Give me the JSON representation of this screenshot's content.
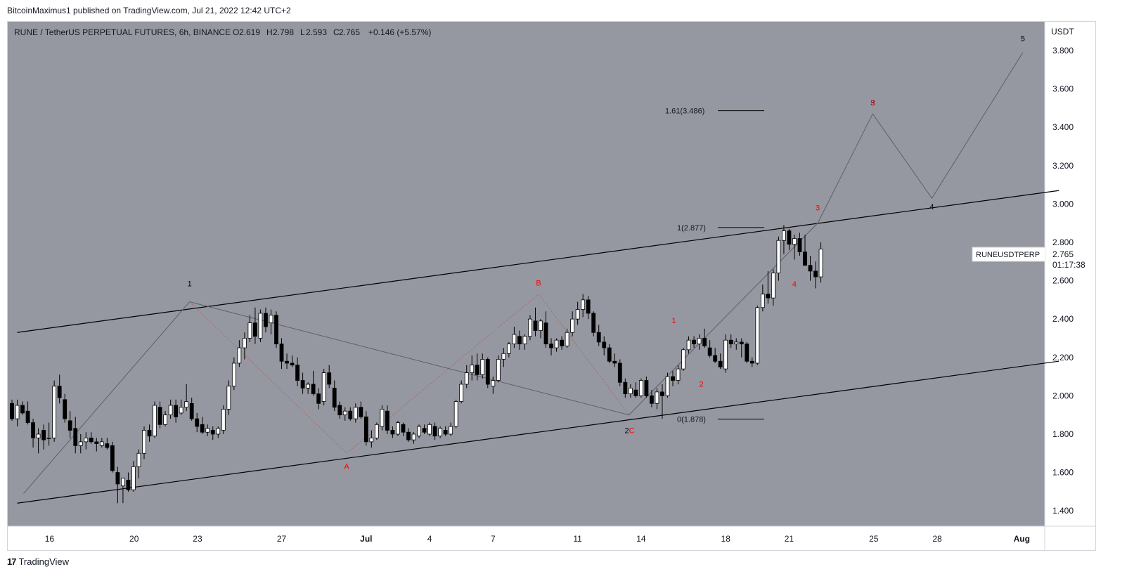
{
  "header": {
    "publisher_line": "BitcoinMaximus1 published on TradingView.com, Jul 21, 2022 12:42 UTC+2"
  },
  "legend": {
    "symbol_text": "RUNE / TetherUS PERPETUAL FUTURES, 6h, BINANCE",
    "open_label": "O",
    "open_value": "2.619",
    "high_label": "H",
    "high_value": "2.798",
    "low_label": "L",
    "low_value": "2.593",
    "close_label": "C",
    "close_value": "2.765",
    "change_text": "+0.146 (+5.57%)"
  },
  "price_axis": {
    "currency": "USDT",
    "ticks": [
      "1.400",
      "1.600",
      "1.800",
      "2.000",
      "2.200",
      "2.400",
      "2.600",
      "2.800",
      "3.000",
      "3.200",
      "3.400",
      "3.600",
      "3.800"
    ]
  },
  "time_axis": {
    "ticks": [
      "16",
      "20",
      "23",
      "27",
      "Jul",
      "4",
      "7",
      "11",
      "14",
      "18",
      "21",
      "25",
      "28",
      "Aug"
    ]
  },
  "price_tag": {
    "symbol": "RUNEUSDTPERP",
    "price": "2.765",
    "countdown": "01:17:38"
  },
  "fib_labels": {
    "top": "1.61(3.486)",
    "mid": "1(2.877)",
    "bottom": "0(1.878)"
  },
  "footer": {
    "logo_mark": "17",
    "brand": "TradingView"
  },
  "colors": {
    "plot_bg": "#9598a1",
    "candle_up": "#ffffff",
    "candle_down": "#000000",
    "wave_red": "#ff0000",
    "wave_black": "#000000"
  },
  "chart_data": {
    "type": "candlestick",
    "title": "RUNE / TetherUS PERPETUAL FUTURES, 6h, BINANCE",
    "ylabel": "USDT",
    "ylim": [
      1.32,
      3.95
    ],
    "x_ticks": [
      "16",
      "20",
      "23",
      "27",
      "Jul",
      "4",
      "7",
      "11",
      "14",
      "18",
      "21",
      "25",
      "28",
      "Aug"
    ],
    "y_ticks": [
      1.4,
      1.6,
      1.8,
      2.0,
      2.2,
      2.4,
      2.6,
      2.8,
      3.0,
      3.2,
      3.4,
      3.6,
      3.8
    ],
    "candles": [
      [
        1.96,
        1.98,
        1.87,
        1.88
      ],
      [
        1.88,
        1.98,
        1.84,
        1.95
      ],
      [
        1.95,
        1.97,
        1.9,
        1.91
      ],
      [
        1.92,
        1.97,
        1.85,
        1.86
      ],
      [
        1.86,
        1.88,
        1.73,
        1.78
      ],
      [
        1.78,
        1.83,
        1.7,
        1.8
      ],
      [
        1.82,
        1.85,
        1.72,
        1.77
      ],
      [
        1.78,
        1.86,
        1.74,
        1.78
      ],
      [
        1.78,
        2.08,
        1.76,
        2.05
      ],
      [
        2.05,
        2.11,
        1.96,
        1.99
      ],
      [
        1.98,
        2.01,
        1.86,
        1.88
      ],
      [
        1.87,
        1.92,
        1.78,
        1.82
      ],
      [
        1.83,
        1.89,
        1.7,
        1.74
      ],
      [
        1.74,
        1.8,
        1.7,
        1.76
      ],
      [
        1.76,
        1.81,
        1.72,
        1.78
      ],
      [
        1.78,
        1.81,
        1.75,
        1.76
      ],
      [
        1.76,
        1.78,
        1.71,
        1.75
      ],
      [
        1.74,
        1.78,
        1.73,
        1.76
      ],
      [
        1.75,
        1.78,
        1.72,
        1.73
      ],
      [
        1.74,
        1.76,
        1.6,
        1.61
      ],
      [
        1.6,
        1.63,
        1.44,
        1.54
      ],
      [
        1.53,
        1.57,
        1.44,
        1.57
      ],
      [
        1.56,
        1.6,
        1.5,
        1.51
      ],
      [
        1.51,
        1.66,
        1.5,
        1.63
      ],
      [
        1.63,
        1.72,
        1.57,
        1.7
      ],
      [
        1.7,
        1.84,
        1.67,
        1.82
      ],
      [
        1.82,
        1.85,
        1.76,
        1.79
      ],
      [
        1.79,
        1.97,
        1.78,
        1.95
      ],
      [
        1.94,
        1.97,
        1.83,
        1.85
      ],
      [
        1.85,
        1.92,
        1.84,
        1.9
      ],
      [
        1.9,
        1.98,
        1.88,
        1.95
      ],
      [
        1.95,
        1.98,
        1.86,
        1.89
      ],
      [
        1.91,
        1.98,
        1.9,
        1.94
      ],
      [
        1.94,
        2.06,
        1.92,
        1.97
      ],
      [
        1.96,
        1.99,
        1.87,
        1.88
      ],
      [
        1.88,
        1.91,
        1.81,
        1.84
      ],
      [
        1.85,
        1.89,
        1.8,
        1.81
      ],
      [
        1.81,
        1.85,
        1.79,
        1.83
      ],
      [
        1.82,
        1.84,
        1.77,
        1.8
      ],
      [
        1.8,
        1.84,
        1.78,
        1.83
      ],
      [
        1.82,
        1.95,
        1.8,
        1.93
      ],
      [
        1.93,
        2.08,
        1.9,
        2.05
      ],
      [
        2.05,
        2.2,
        2.03,
        2.17
      ],
      [
        2.17,
        2.29,
        2.15,
        2.25
      ],
      [
        2.25,
        2.33,
        2.19,
        2.3
      ],
      [
        2.3,
        2.42,
        2.28,
        2.38
      ],
      [
        2.38,
        2.46,
        2.27,
        2.31
      ],
      [
        2.3,
        2.45,
        2.28,
        2.43
      ],
      [
        2.43,
        2.46,
        2.33,
        2.36
      ],
      [
        2.38,
        2.45,
        2.32,
        2.42
      ],
      [
        2.42,
        2.44,
        2.25,
        2.27
      ],
      [
        2.27,
        2.3,
        2.14,
        2.18
      ],
      [
        2.18,
        2.22,
        2.14,
        2.17
      ],
      [
        2.17,
        2.21,
        2.15,
        2.16
      ],
      [
        2.16,
        2.2,
        2.05,
        2.08
      ],
      [
        2.08,
        2.12,
        2.01,
        2.04
      ],
      [
        2.04,
        2.07,
        2.01,
        2.06
      ],
      [
        2.06,
        2.13,
        2.0,
        2.01
      ],
      [
        2.01,
        2.04,
        1.93,
        1.96
      ],
      [
        1.97,
        2.14,
        1.95,
        2.12
      ],
      [
        2.12,
        2.16,
        2.04,
        2.06
      ],
      [
        2.04,
        2.08,
        1.92,
        1.94
      ],
      [
        1.95,
        1.97,
        1.88,
        1.9
      ],
      [
        1.9,
        1.94,
        1.87,
        1.92
      ],
      [
        1.92,
        1.94,
        1.87,
        1.88
      ],
      [
        1.88,
        1.96,
        1.86,
        1.94
      ],
      [
        1.94,
        1.97,
        1.88,
        1.89
      ],
      [
        1.89,
        1.92,
        1.74,
        1.76
      ],
      [
        1.76,
        1.82,
        1.73,
        1.78
      ],
      [
        1.78,
        1.86,
        1.77,
        1.85
      ],
      [
        1.84,
        1.95,
        1.82,
        1.93
      ],
      [
        1.92,
        1.95,
        1.8,
        1.82
      ],
      [
        1.82,
        1.84,
        1.78,
        1.8
      ],
      [
        1.8,
        1.87,
        1.79,
        1.86
      ],
      [
        1.85,
        1.86,
        1.79,
        1.81
      ],
      [
        1.81,
        1.83,
        1.76,
        1.77
      ],
      [
        1.77,
        1.81,
        1.75,
        1.8
      ],
      [
        1.79,
        1.85,
        1.78,
        1.84
      ],
      [
        1.83,
        1.85,
        1.8,
        1.81
      ],
      [
        1.8,
        1.86,
        1.79,
        1.85
      ],
      [
        1.84,
        1.86,
        1.77,
        1.79
      ],
      [
        1.79,
        1.84,
        1.78,
        1.83
      ],
      [
        1.82,
        1.84,
        1.79,
        1.8
      ],
      [
        1.8,
        1.86,
        1.79,
        1.84
      ],
      [
        1.84,
        1.98,
        1.83,
        1.97
      ],
      [
        1.97,
        2.08,
        1.96,
        2.06
      ],
      [
        2.06,
        2.16,
        2.04,
        2.12
      ],
      [
        2.12,
        2.21,
        2.08,
        2.16
      ],
      [
        2.16,
        2.22,
        2.08,
        2.11
      ],
      [
        2.11,
        2.22,
        2.09,
        2.19
      ],
      [
        2.19,
        2.2,
        2.04,
        2.06
      ],
      [
        2.05,
        2.1,
        2.01,
        2.08
      ],
      [
        2.08,
        2.21,
        2.07,
        2.19
      ],
      [
        2.19,
        2.25,
        2.15,
        2.22
      ],
      [
        2.22,
        2.28,
        2.2,
        2.27
      ],
      [
        2.27,
        2.36,
        2.25,
        2.32
      ],
      [
        2.31,
        2.34,
        2.24,
        2.27
      ],
      [
        2.27,
        2.32,
        2.24,
        2.31
      ],
      [
        2.31,
        2.42,
        2.29,
        2.4
      ],
      [
        2.39,
        2.46,
        2.31,
        2.34
      ],
      [
        2.34,
        2.4,
        2.3,
        2.39
      ],
      [
        2.38,
        2.44,
        2.25,
        2.27
      ],
      [
        2.27,
        2.3,
        2.21,
        2.25
      ],
      [
        2.25,
        2.3,
        2.23,
        2.29
      ],
      [
        2.29,
        2.31,
        2.24,
        2.26
      ],
      [
        2.26,
        2.35,
        2.25,
        2.33
      ],
      [
        2.33,
        2.44,
        2.31,
        2.4
      ],
      [
        2.4,
        2.49,
        2.37,
        2.45
      ],
      [
        2.45,
        2.53,
        2.41,
        2.5
      ],
      [
        2.5,
        2.52,
        2.4,
        2.43
      ],
      [
        2.43,
        2.44,
        2.31,
        2.33
      ],
      [
        2.33,
        2.37,
        2.26,
        2.28
      ],
      [
        2.28,
        2.31,
        2.21,
        2.25
      ],
      [
        2.25,
        2.27,
        2.17,
        2.18
      ],
      [
        2.18,
        2.22,
        2.15,
        2.17
      ],
      [
        2.17,
        2.19,
        2.05,
        2.07
      ],
      [
        2.07,
        2.09,
        1.99,
        2.01
      ],
      [
        2.01,
        2.06,
        1.99,
        2.04
      ],
      [
        2.03,
        2.07,
        1.99,
        2.0
      ],
      [
        2.0,
        2.09,
        1.99,
        2.08
      ],
      [
        2.08,
        2.1,
        1.99,
        2.0
      ],
      [
        2.0,
        2.03,
        1.94,
        1.96
      ],
      [
        1.96,
        2.04,
        1.93,
        2.02
      ],
      [
        2.02,
        2.06,
        1.88,
        2.0
      ],
      [
        2.0,
        2.12,
        1.99,
        2.1
      ],
      [
        2.1,
        2.13,
        2.05,
        2.08
      ],
      [
        2.08,
        2.16,
        2.06,
        2.14
      ],
      [
        2.14,
        2.25,
        2.13,
        2.24
      ],
      [
        2.24,
        2.31,
        2.22,
        2.29
      ],
      [
        2.29,
        2.31,
        2.25,
        2.27
      ],
      [
        2.27,
        2.32,
        2.24,
        2.3
      ],
      [
        2.3,
        2.35,
        2.25,
        2.26
      ],
      [
        2.25,
        2.29,
        2.2,
        2.21
      ],
      [
        2.21,
        2.25,
        2.17,
        2.18
      ],
      [
        2.18,
        2.22,
        2.14,
        2.15
      ],
      [
        2.14,
        2.32,
        2.12,
        2.29
      ],
      [
        2.29,
        2.32,
        2.25,
        2.27
      ],
      [
        2.27,
        2.3,
        2.24,
        2.28
      ],
      [
        2.28,
        2.3,
        2.2,
        2.27
      ],
      [
        2.27,
        2.28,
        2.17,
        2.18
      ],
      [
        2.18,
        2.2,
        2.15,
        2.17
      ],
      [
        2.17,
        2.47,
        2.16,
        2.46
      ],
      [
        2.46,
        2.58,
        2.44,
        2.53
      ],
      [
        2.53,
        2.65,
        2.48,
        2.51
      ],
      [
        2.51,
        2.66,
        2.47,
        2.64
      ],
      [
        2.64,
        2.83,
        2.6,
        2.81
      ],
      [
        2.81,
        2.89,
        2.74,
        2.86
      ],
      [
        2.86,
        2.87,
        2.76,
        2.79
      ],
      [
        2.79,
        2.84,
        2.71,
        2.82
      ],
      [
        2.82,
        2.85,
        2.73,
        2.75
      ],
      [
        2.75,
        2.84,
        2.7,
        2.68
      ],
      [
        2.68,
        2.73,
        2.6,
        2.65
      ],
      [
        2.65,
        2.7,
        2.56,
        2.62
      ],
      [
        2.62,
        2.8,
        2.59,
        2.765
      ]
    ],
    "channel_upper": [
      [
        1.0,
        2.33
      ],
      [
        198.0,
        3.07
      ]
    ],
    "channel_lower": [
      [
        1.0,
        1.44
      ],
      [
        198.0,
        2.18
      ]
    ],
    "fib_levels": [
      {
        "label": "1.61(3.486)",
        "value": 3.486
      },
      {
        "label": "1(2.877)",
        "value": 2.877
      },
      {
        "label": "0(1.878)",
        "value": 1.878
      }
    ],
    "black_wave_path": [
      [
        2.2,
        1.49
      ],
      [
        33.6,
        2.49
      ],
      [
        116.7,
        1.9
      ],
      [
        152.4,
        2.9
      ],
      [
        162.8,
        3.47
      ],
      [
        174.0,
        3.03
      ],
      [
        191.2,
        3.79
      ]
    ],
    "black_wave_labels": [
      {
        "text": "1",
        "x": 33.6,
        "y": 2.49
      },
      {
        "text": "2",
        "x": 116.7,
        "y": 1.9
      },
      {
        "text": "3",
        "x": 162.8,
        "y": 3.47
      },
      {
        "text": "4",
        "x": 174.0,
        "y": 3.03
      },
      {
        "text": "5",
        "x": 191.2,
        "y": 3.79
      }
    ],
    "red_wave_path": [
      [
        33.6,
        2.49
      ],
      [
        63.3,
        1.7
      ],
      [
        99.6,
        2.53
      ],
      [
        116.7,
        1.9
      ]
    ],
    "red_wave_labels": [
      {
        "text": "A",
        "x": 63.3,
        "y": 1.7
      },
      {
        "text": "B",
        "x": 99.6,
        "y": 2.53
      },
      {
        "text": "C",
        "x": 116.7,
        "y": 1.9
      },
      {
        "text": "1",
        "x": 125.2,
        "y": 2.35
      },
      {
        "text": "2",
        "x": 130.4,
        "y": 2.12
      },
      {
        "text": "3",
        "x": 152.4,
        "y": 2.9
      },
      {
        "text": "4",
        "x": 148.0,
        "y": 2.54
      },
      {
        "text": "5",
        "x": 162.8,
        "y": 3.47
      }
    ]
  }
}
